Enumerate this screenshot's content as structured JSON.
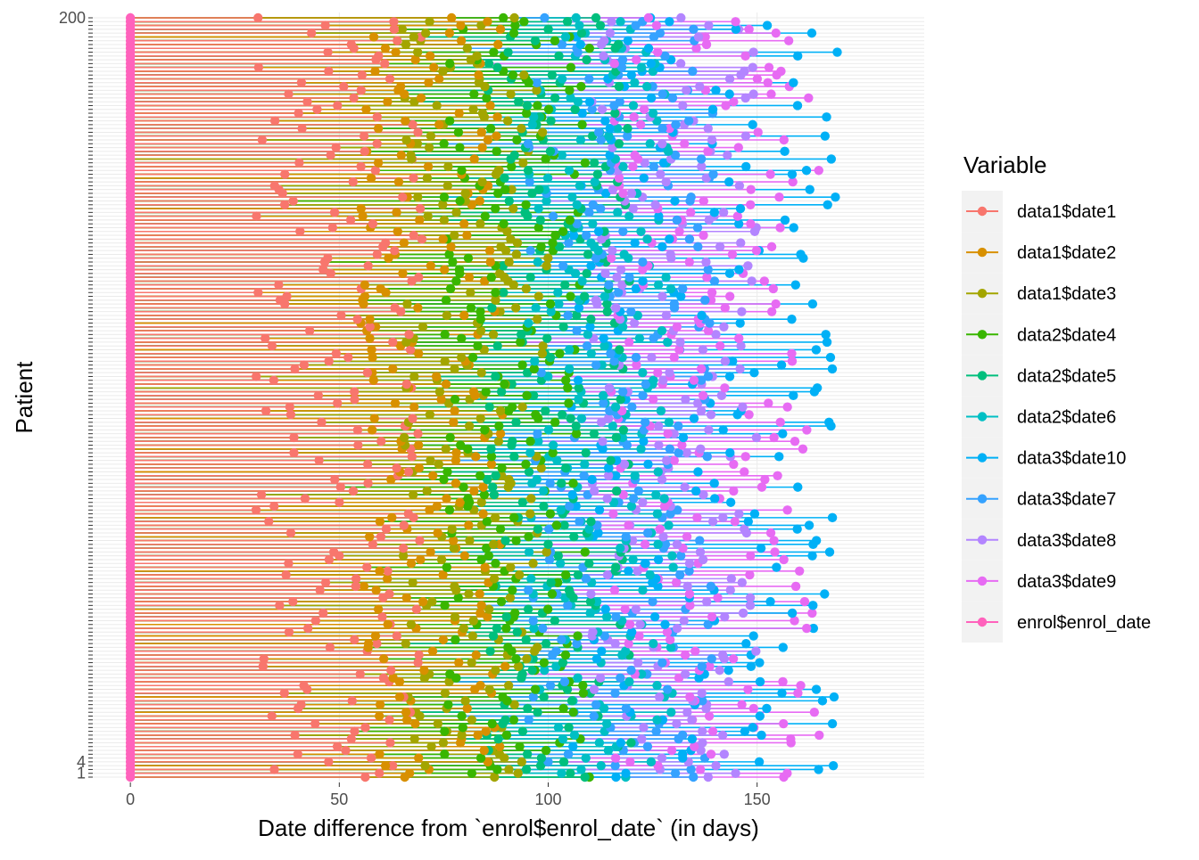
{
  "chart_data": {
    "type": "scatter",
    "subtype": "dot-and-segment timeline per patient",
    "xlabel": "Date difference from `enrol$enrol_date` (in days)",
    "ylabel": "Patient",
    "xlim": [
      -9,
      190
    ],
    "x_ticks": [
      0,
      50,
      100,
      150
    ],
    "y_ticks_visible": [
      "200",
      "4",
      "1"
    ],
    "n_patients": 200,
    "grid": true,
    "background": "#ffffff",
    "legend": {
      "title": "Variable",
      "position": "right"
    },
    "series": [
      {
        "name": "data1$date1",
        "color": "#F8766D",
        "typical_day_range": [
          30,
          70
        ]
      },
      {
        "name": "data1$date2",
        "color": "#D89000",
        "typical_day_range": [
          55,
          90
        ]
      },
      {
        "name": "data1$date3",
        "color": "#A3A500",
        "typical_day_range": [
          65,
          100
        ]
      },
      {
        "name": "data2$date4",
        "color": "#39B600",
        "typical_day_range": [
          75,
          110
        ]
      },
      {
        "name": "data2$date5",
        "color": "#00BF7D",
        "typical_day_range": [
          85,
          120
        ]
      },
      {
        "name": "data2$date6",
        "color": "#00BFC4",
        "typical_day_range": [
          95,
          130
        ]
      },
      {
        "name": "data3$date10",
        "color": "#00B0F6",
        "typical_day_range": [
          105,
          170
        ]
      },
      {
        "name": "data3$date7",
        "color": "#35A2FF",
        "typical_day_range": [
          95,
          140
        ]
      },
      {
        "name": "data3$date8",
        "color": "#B385FF",
        "typical_day_range": [
          110,
          150
        ]
      },
      {
        "name": "data3$date9",
        "color": "#E76BF3",
        "typical_day_range": [
          115,
          165
        ]
      },
      {
        "name": "enrol$enrol_date",
        "color": "#FF62BC",
        "typical_day_range": [
          0,
          0
        ]
      }
    ]
  }
}
